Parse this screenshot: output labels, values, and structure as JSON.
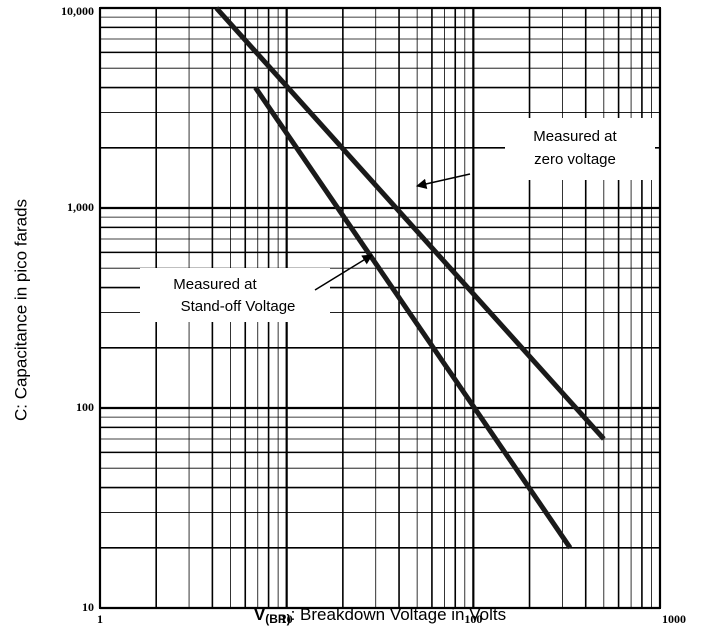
{
  "chart_data": {
    "type": "line",
    "x_label": {
      "main": "V",
      "sub": "(BR)",
      "rest": ": Breakdown Voltage in Volts"
    },
    "y_label": "C: Capacitance in pico farads",
    "xscale": "log",
    "yscale": "log",
    "xlim": [
      1,
      1000
    ],
    "ylim": [
      10,
      10000
    ],
    "xticks": [
      1,
      10,
      100,
      1000
    ],
    "yticks": [
      10,
      100,
      {
        "value": 1000,
        "label": "1,000"
      },
      {
        "value": 10000,
        "label": "10,000"
      }
    ],
    "grid": true,
    "minor_grid": true,
    "series": [
      {
        "name": "Measured at zero voltage",
        "label_lines": [
          "Measured at",
          "zero voltage"
        ],
        "color": "#1a1a1a",
        "x": [
          4.2,
          500
        ],
        "values": [
          10000,
          70
        ]
      },
      {
        "name": "Measured at Stand-off Voltage",
        "label_lines": [
          "Measured at",
          "Stand-off Voltage"
        ],
        "color": "#1a1a1a",
        "x": [
          6.8,
          330
        ],
        "values": [
          4000,
          20
        ]
      }
    ]
  }
}
